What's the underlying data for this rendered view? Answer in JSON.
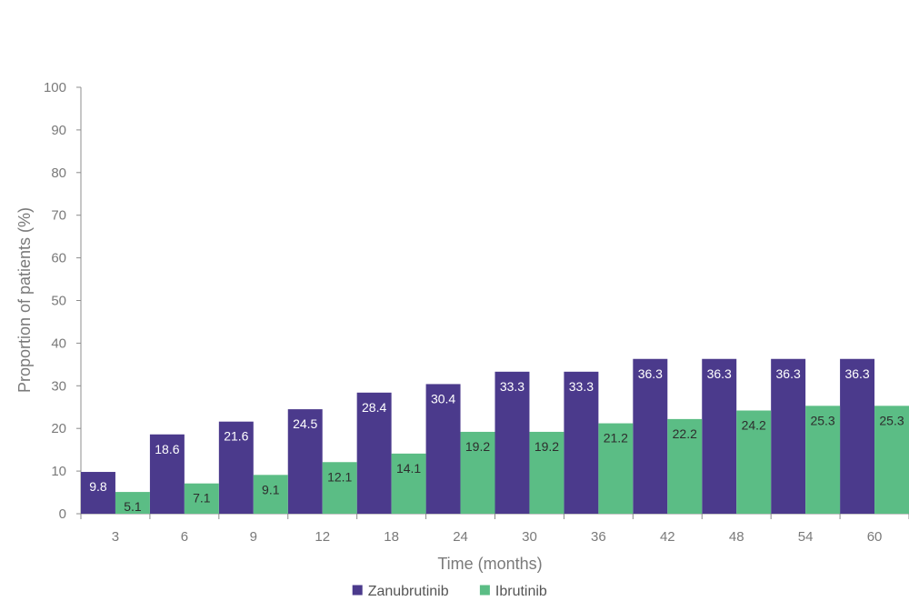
{
  "chart_data": {
    "type": "bar",
    "title": "",
    "xlabel": "Time (months)",
    "ylabel": "Proportion of patients (%)",
    "ylim": [
      0,
      100
    ],
    "yticks": [
      0,
      10,
      20,
      30,
      40,
      50,
      60,
      70,
      80,
      90,
      100
    ],
    "categories": [
      "3",
      "6",
      "9",
      "12",
      "18",
      "24",
      "30",
      "36",
      "42",
      "48",
      "54",
      "60"
    ],
    "series": [
      {
        "name": "Zanubrutinib",
        "color": "#4b3a8c",
        "label_color": "#ffffff",
        "values": [
          9.8,
          18.6,
          21.6,
          24.5,
          28.4,
          30.4,
          33.3,
          33.3,
          36.3,
          36.3,
          36.3,
          36.3
        ]
      },
      {
        "name": "Ibrutinib",
        "color": "#5bbd85",
        "label_color": "#2d2d2d",
        "values": [
          5.1,
          7.1,
          9.1,
          12.1,
          14.1,
          19.2,
          19.2,
          21.2,
          22.2,
          24.2,
          25.3,
          25.3
        ]
      }
    ],
    "legend": "bottom-center",
    "grid": false
  }
}
